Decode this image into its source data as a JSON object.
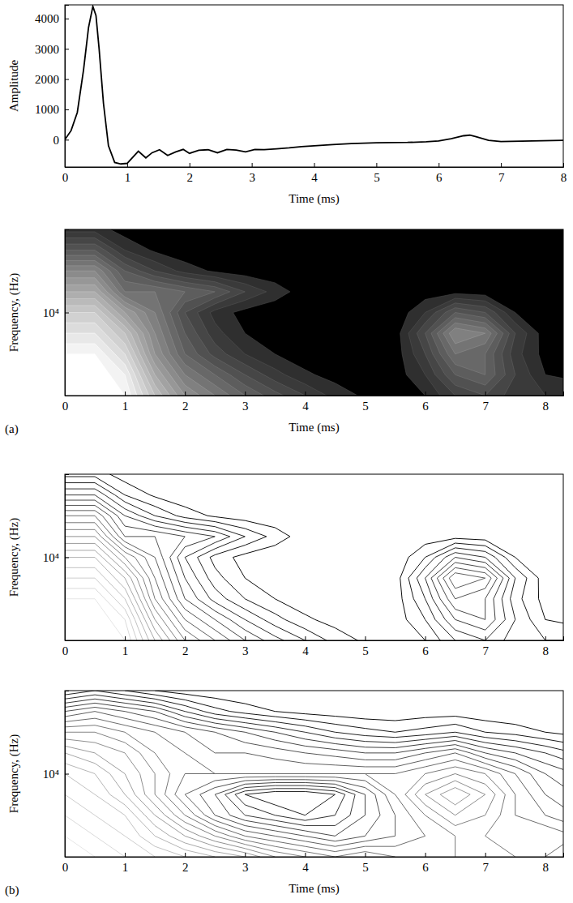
{
  "chart_data": [
    {
      "type": "line",
      "x_label": "Time (ms)",
      "y_label": "Amplitude",
      "x": [
        0,
        0.1,
        0.2,
        0.3,
        0.38,
        0.45,
        0.5,
        0.55,
        0.62,
        0.7,
        0.8,
        0.9,
        1.0,
        1.08,
        1.18,
        1.3,
        1.4,
        1.52,
        1.65,
        1.78,
        1.9,
        2.0,
        2.15,
        2.3,
        2.45,
        2.6,
        2.75,
        2.9,
        3.05,
        3.2,
        3.4,
        3.6,
        3.8,
        4.0,
        4.3,
        4.6,
        5.0,
        5.5,
        5.8,
        6.0,
        6.2,
        6.4,
        6.5,
        6.6,
        6.8,
        7.0,
        7.5,
        8.0
      ],
      "values": [
        0,
        300,
        900,
        2300,
        3700,
        4400,
        4100,
        3000,
        1200,
        -200,
        -750,
        -800,
        -780,
        -600,
        -380,
        -600,
        -430,
        -330,
        -520,
        -400,
        -320,
        -450,
        -350,
        -330,
        -430,
        -320,
        -340,
        -400,
        -320,
        -330,
        -300,
        -270,
        -230,
        -200,
        -160,
        -130,
        -100,
        -90,
        -70,
        -40,
        30,
        130,
        150,
        100,
        -20,
        -60,
        -40,
        -20
      ],
      "xlim": [
        0,
        8
      ],
      "xticks": [
        0,
        1,
        2,
        3,
        4,
        5,
        6,
        7,
        8
      ],
      "ylim": [
        -900,
        4450
      ],
      "yticks": [
        0,
        1000,
        2000,
        3000,
        4000
      ]
    },
    {
      "type": "filled_contour",
      "x_label": "Time (ms)",
      "y_label": "Frequency, (Hz)",
      "panel": "(a)",
      "log": "y",
      "xlim": [
        0,
        8.3
      ],
      "xticks": [
        0,
        1,
        2,
        3,
        4,
        5,
        6,
        7,
        8
      ],
      "ylim": [
        2500,
        40000
      ],
      "yticks": [
        {
          "value": 10000,
          "label": "10⁴"
        }
      ],
      "x": [
        0,
        0.5,
        1,
        1.5,
        2,
        2.5,
        3,
        3.5,
        4,
        4.5,
        5,
        5.5,
        6,
        6.5,
        7,
        7.5,
        8,
        8.5
      ],
      "y": [
        2500,
        3536,
        5000,
        7071,
        10000,
        14142,
        20000,
        28284,
        40000
      ],
      "levels": [
        0.05,
        0.1,
        0.15,
        0.2,
        0.25,
        0.3,
        0.35,
        0.4,
        0.45,
        0.5,
        0.55,
        0.6,
        0.65,
        0.7,
        0.75,
        0.8,
        0.85,
        0.9,
        0.95
      ],
      "cells": [
        [
          1,
          1,
          0.95,
          0.7,
          0.5,
          0.4,
          0.3,
          0.22,
          0.15,
          0.08,
          0.04,
          0.02,
          0.05,
          0.15,
          0.2,
          0.12,
          0.1,
          0.1
        ],
        [
          1,
          1,
          0.9,
          0.6,
          0.4,
          0.3,
          0.2,
          0.12,
          0.06,
          0.03,
          0.01,
          0.02,
          0.1,
          0.25,
          0.3,
          0.15,
          0.05,
          0.03
        ],
        [
          0.95,
          0.95,
          0.8,
          0.5,
          0.3,
          0.18,
          0.1,
          0.05,
          0.02,
          0.01,
          0.01,
          0.02,
          0.15,
          0.35,
          0.3,
          0.12,
          0.03,
          0.02
        ],
        [
          0.85,
          0.85,
          0.7,
          0.45,
          0.25,
          0.12,
          0.05,
          0.02,
          0.01,
          0,
          0,
          0.02,
          0.2,
          0.45,
          0.4,
          0.15,
          0.02,
          0.01
        ],
        [
          0.75,
          0.75,
          0.55,
          0.4,
          0.2,
          0.08,
          0.03,
          0.01,
          0,
          0,
          0,
          0.01,
          0.1,
          0.25,
          0.2,
          0.05,
          0.01,
          0
        ],
        [
          0.6,
          0.6,
          0.35,
          0.35,
          0.3,
          0.25,
          0.15,
          0.08,
          0.02,
          0,
          0,
          0,
          0.02,
          0.03,
          0.02,
          0.01,
          0,
          0
        ],
        [
          0.45,
          0.45,
          0.25,
          0.15,
          0.08,
          0.04,
          0.02,
          0.01,
          0,
          0,
          0,
          0,
          0,
          0,
          0,
          0,
          0,
          0
        ],
        [
          0.25,
          0.25,
          0.1,
          0.04,
          0.01,
          0,
          0,
          0,
          0,
          0,
          0,
          0,
          0,
          0,
          0,
          0,
          0,
          0
        ],
        [
          0.08,
          0.08,
          0.02,
          0,
          0,
          0,
          0,
          0,
          0,
          0,
          0,
          0,
          0,
          0,
          0,
          0,
          0,
          0
        ]
      ]
    },
    {
      "type": "contour",
      "y_label": "Frequency, (Hz)",
      "log": "y",
      "xlim": [
        0,
        8.3
      ],
      "xticks": [
        0,
        1,
        2,
        3,
        4,
        5,
        6,
        7,
        8
      ],
      "ylim": [
        2500,
        40000
      ],
      "yticks": [
        {
          "value": 10000,
          "label": "10⁴"
        }
      ],
      "x": [
        0,
        0.5,
        1,
        1.5,
        2,
        2.5,
        3,
        3.5,
        4,
        4.5,
        5,
        5.5,
        6,
        6.5,
        7,
        7.5,
        8,
        8.5
      ],
      "y": [
        2500,
        3536,
        5000,
        7071,
        10000,
        14142,
        20000,
        28284,
        40000
      ],
      "levels": [
        0.05,
        0.1,
        0.15,
        0.2,
        0.25,
        0.3,
        0.35,
        0.4,
        0.45,
        0.5,
        0.55,
        0.6,
        0.65,
        0.7,
        0.75,
        0.8,
        0.85,
        0.9,
        0.95
      ],
      "cells": [
        [
          1,
          1,
          0.95,
          0.7,
          0.5,
          0.4,
          0.3,
          0.22,
          0.15,
          0.08,
          0.04,
          0.02,
          0.05,
          0.15,
          0.2,
          0.12,
          0.1,
          0.1
        ],
        [
          1,
          1,
          0.9,
          0.6,
          0.4,
          0.3,
          0.2,
          0.12,
          0.06,
          0.03,
          0.01,
          0.02,
          0.1,
          0.25,
          0.3,
          0.15,
          0.05,
          0.03
        ],
        [
          0.95,
          0.95,
          0.8,
          0.5,
          0.3,
          0.18,
          0.1,
          0.05,
          0.02,
          0.01,
          0.01,
          0.02,
          0.15,
          0.35,
          0.3,
          0.12,
          0.03,
          0.02
        ],
        [
          0.85,
          0.85,
          0.7,
          0.45,
          0.25,
          0.12,
          0.05,
          0.02,
          0.01,
          0,
          0,
          0.02,
          0.2,
          0.45,
          0.4,
          0.15,
          0.02,
          0.01
        ],
        [
          0.75,
          0.75,
          0.55,
          0.4,
          0.2,
          0.08,
          0.03,
          0.01,
          0,
          0,
          0,
          0.01,
          0.1,
          0.25,
          0.2,
          0.05,
          0.01,
          0
        ],
        [
          0.6,
          0.6,
          0.35,
          0.35,
          0.3,
          0.25,
          0.15,
          0.08,
          0.02,
          0,
          0,
          0,
          0.02,
          0.03,
          0.02,
          0.01,
          0,
          0
        ],
        [
          0.45,
          0.45,
          0.25,
          0.15,
          0.08,
          0.04,
          0.02,
          0.01,
          0,
          0,
          0,
          0,
          0,
          0,
          0,
          0,
          0,
          0
        ],
        [
          0.25,
          0.25,
          0.1,
          0.04,
          0.01,
          0,
          0,
          0,
          0,
          0,
          0,
          0,
          0,
          0,
          0,
          0,
          0,
          0
        ],
        [
          0.08,
          0.08,
          0.02,
          0,
          0,
          0,
          0,
          0,
          0,
          0,
          0,
          0,
          0,
          0,
          0,
          0,
          0,
          0
        ]
      ]
    },
    {
      "type": "contour",
      "x_label": "Time (ms)",
      "y_label": "Frequency, (Hz)",
      "panel": "(b)",
      "log": "y",
      "xlim": [
        0,
        8.3
      ],
      "xticks": [
        0,
        1,
        2,
        3,
        4,
        5,
        6,
        7,
        8
      ],
      "ylim": [
        2500,
        40000
      ],
      "yticks": [
        {
          "value": 10000,
          "label": "10⁴"
        }
      ],
      "x": [
        0,
        0.5,
        1,
        1.5,
        2,
        2.5,
        3,
        3.5,
        4,
        4.5,
        5,
        5.5,
        6,
        6.5,
        7,
        7.5,
        8,
        8.5
      ],
      "y": [
        2500,
        3536,
        5000,
        7071,
        10000,
        14142,
        20000,
        28284,
        40000
      ],
      "levels": [
        0.05,
        0.1,
        0.15,
        0.2,
        0.25,
        0.3,
        0.35,
        0.4,
        0.45,
        0.5,
        0.55,
        0.6,
        0.65,
        0.7,
        0.75,
        0.8,
        0.85,
        0.9,
        0.95
      ],
      "cells": [
        [
          1,
          0.95,
          0.9,
          0.85,
          0.8,
          0.75,
          0.7,
          0.6,
          0.55,
          0.5,
          0.55,
          0.5,
          0.45,
          0.5,
          0.55,
          0.5,
          0.45,
          0.4
        ],
        [
          0.95,
          0.9,
          0.85,
          0.75,
          0.65,
          0.55,
          0.45,
          0.4,
          0.35,
          0.3,
          0.35,
          0.4,
          0.45,
          0.5,
          0.5,
          0.45,
          0.5,
          0.45
        ],
        [
          0.9,
          0.85,
          0.8,
          0.65,
          0.5,
          0.35,
          0.25,
          0.2,
          0.15,
          0.2,
          0.3,
          0.4,
          0.5,
          0.6,
          0.55,
          0.45,
          0.4,
          0.35
        ],
        [
          0.85,
          0.8,
          0.7,
          0.55,
          0.4,
          0.3,
          0.15,
          0.1,
          0.1,
          0.15,
          0.3,
          0.45,
          0.6,
          0.7,
          0.6,
          0.45,
          0.35,
          0.3
        ],
        [
          0.8,
          0.75,
          0.65,
          0.55,
          0.45,
          0.45,
          0.45,
          0.45,
          0.45,
          0.45,
          0.45,
          0.45,
          0.5,
          0.55,
          0.5,
          0.4,
          0.3,
          0.25
        ],
        [
          0.7,
          0.65,
          0.6,
          0.5,
          0.45,
          0.4,
          0.4,
          0.38,
          0.35,
          0.33,
          0.3,
          0.3,
          0.35,
          0.4,
          0.3,
          0.25,
          0.2,
          0.15
        ],
        [
          0.55,
          0.55,
          0.5,
          0.45,
          0.4,
          0.35,
          0.3,
          0.25,
          0.2,
          0.15,
          0.12,
          0.1,
          0.12,
          0.15,
          0.1,
          0.08,
          0.05,
          0.03
        ],
        [
          0.35,
          0.4,
          0.35,
          0.3,
          0.2,
          0.12,
          0.08,
          0.05,
          0.03,
          0.02,
          0.01,
          0.01,
          0.02,
          0.02,
          0.01,
          0,
          0,
          0
        ],
        [
          0.1,
          0.15,
          0.1,
          0.05,
          0.02,
          0.01,
          0,
          0,
          0,
          0,
          0,
          0,
          0,
          0,
          0,
          0,
          0,
          0
        ]
      ]
    }
  ]
}
